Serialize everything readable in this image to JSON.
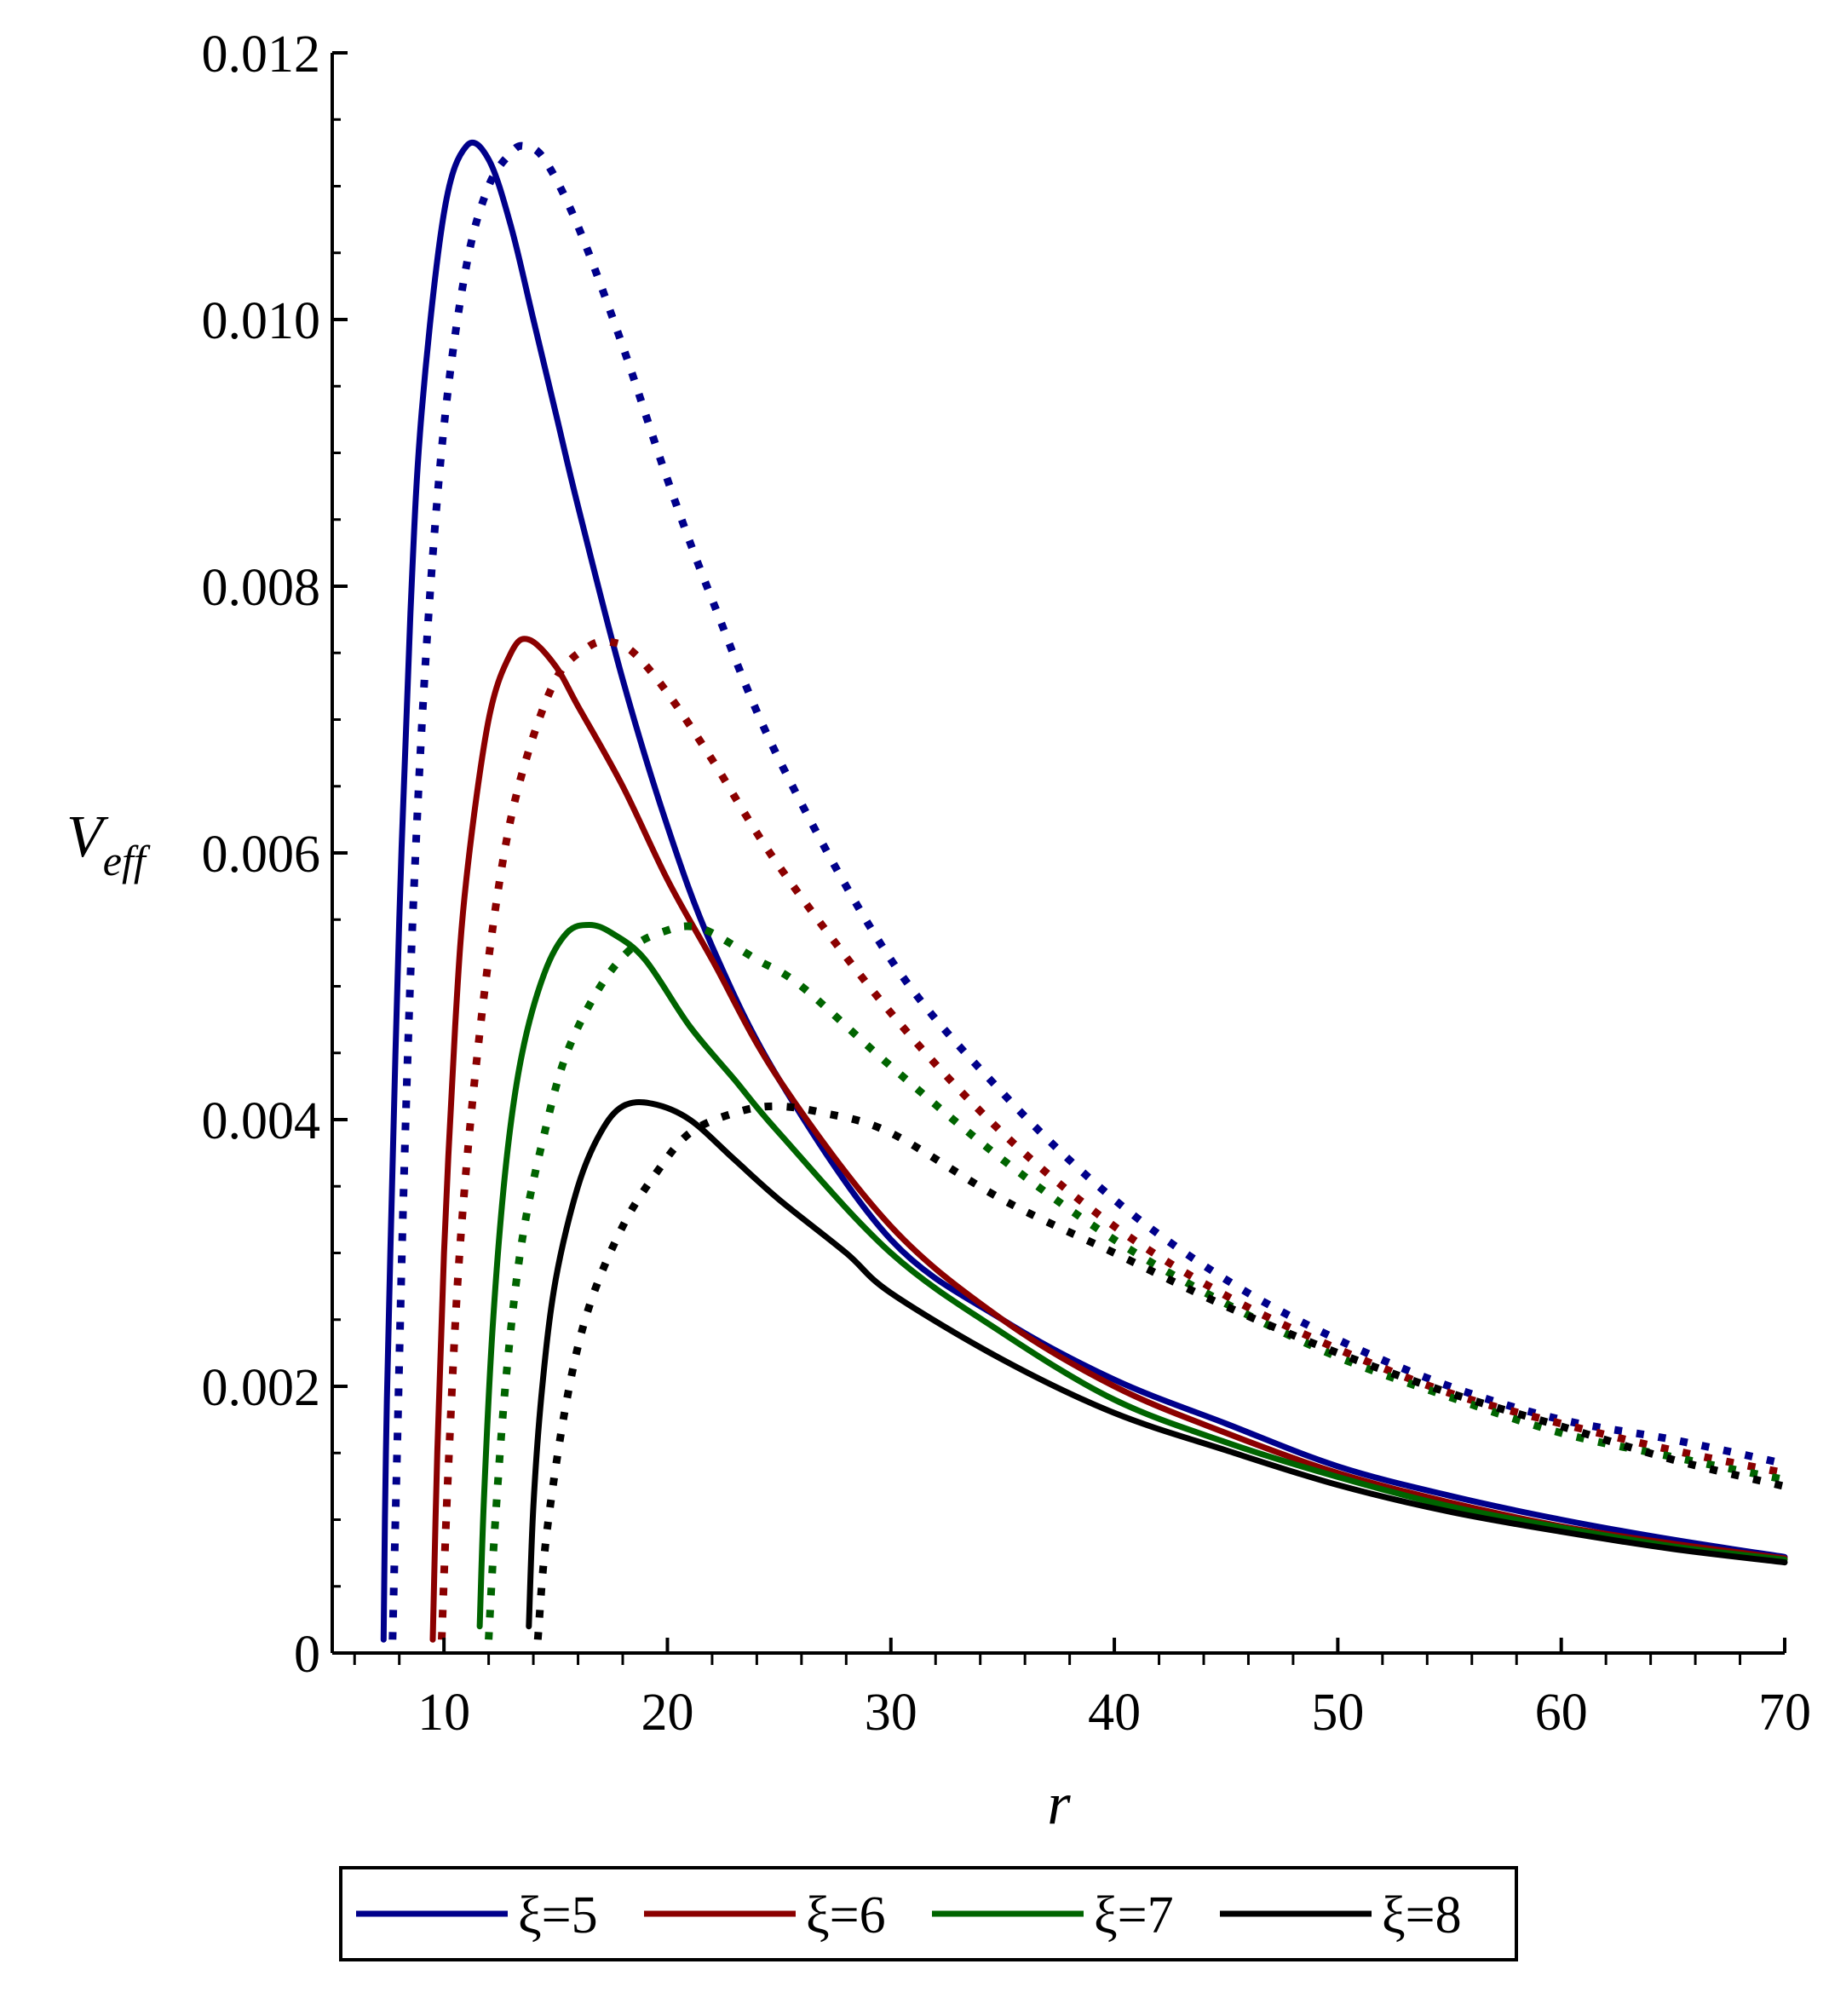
{
  "chart_data": {
    "type": "line",
    "title": "",
    "xlabel": "r",
    "ylabel": "V",
    "ylabel_subscript": "eff",
    "xlim": [
      5,
      70
    ],
    "ylim": [
      0,
      0.012
    ],
    "x_ticks": [
      10,
      20,
      30,
      40,
      50,
      60,
      70
    ],
    "x_tick_labels": [
      "10",
      "20",
      "30",
      "40",
      "50",
      "60",
      "70"
    ],
    "y_ticks": [
      0,
      0.002,
      0.004,
      0.006,
      0.008,
      0.01,
      0.012
    ],
    "y_tick_labels": [
      "0",
      "0.002",
      "0.004",
      "0.006",
      "0.008",
      "0.010",
      "0.012"
    ],
    "grid": false,
    "legend_position": "bottom",
    "series": [
      {
        "name": "ξ=5",
        "color": "#00008b",
        "style": "solid",
        "x": [
          7.3,
          7.4,
          7.6,
          8.0,
          8.5,
          9.0,
          10.0,
          11.0,
          12.0,
          13.0,
          14.0,
          15.0,
          16.0,
          18.0,
          20.0,
          22.0,
          25.0,
          30.0,
          35.0,
          40.0,
          45.0,
          50.0,
          55.0,
          60.0,
          65.0,
          70.0
        ],
        "values": [
          0.0001,
          0.0015,
          0.003,
          0.0055,
          0.0078,
          0.0093,
          0.0108,
          0.0113,
          0.0112,
          0.0107,
          0.01,
          0.0093,
          0.0086,
          0.0073,
          0.0062,
          0.0053,
          0.0043,
          0.0031,
          0.0025,
          0.00205,
          0.00172,
          0.0014,
          0.00118,
          0.001,
          0.00085,
          0.00072
        ]
      },
      {
        "name": "ξ=5 (dotted)",
        "color": "#00008b",
        "style": "dotted",
        "x": [
          7.7,
          7.9,
          8.2,
          8.6,
          9.2,
          10.0,
          11.0,
          12.0,
          13.0,
          13.6,
          14.5,
          16.0,
          18.0,
          20.0,
          22.0,
          25.0,
          30.0,
          35.0,
          40.0,
          45.0,
          50.0,
          55.0,
          60.0,
          65.0,
          70.0
        ],
        "values": [
          0.0001,
          0.0015,
          0.0035,
          0.0055,
          0.0075,
          0.0092,
          0.0104,
          0.011,
          0.01125,
          0.0113,
          0.0112,
          0.0107,
          0.0098,
          0.0088,
          0.0079,
          0.0067,
          0.0052,
          0.0042,
          0.0034,
          0.0028,
          0.00235,
          0.002,
          0.00175,
          0.0016,
          0.00142
        ]
      },
      {
        "name": "ξ=6",
        "color": "#8b0000",
        "style": "solid",
        "x": [
          9.5,
          9.7,
          10.0,
          10.5,
          11.0,
          12.0,
          13.0,
          13.8,
          15.0,
          16.0,
          18.0,
          20.0,
          22.0,
          25.0,
          30.0,
          35.0,
          40.0,
          45.0,
          50.0,
          55.0,
          60.0,
          65.0,
          70.0
        ],
        "values": [
          0.0001,
          0.0015,
          0.003,
          0.0047,
          0.0058,
          0.007,
          0.0075,
          0.0076,
          0.0074,
          0.0071,
          0.0065,
          0.0058,
          0.0052,
          0.0043,
          0.0032,
          0.0025,
          0.002,
          0.00165,
          0.00135,
          0.00113,
          0.00095,
          0.00082,
          0.00071
        ]
      },
      {
        "name": "ξ=6 (dotted)",
        "color": "#8b0000",
        "style": "dotted",
        "x": [
          9.9,
          10.2,
          10.7,
          11.5,
          12.5,
          13.5,
          15.0,
          16.5,
          17.5,
          18.5,
          20.0,
          22.0,
          25.0,
          30.0,
          35.0,
          40.0,
          45.0,
          50.0,
          55.0,
          60.0,
          65.0,
          70.0
        ],
        "values": [
          0.0001,
          0.0014,
          0.003,
          0.0045,
          0.0058,
          0.0066,
          0.0073,
          0.00755,
          0.00758,
          0.0075,
          0.0072,
          0.0067,
          0.0059,
          0.0048,
          0.0039,
          0.0032,
          0.00268,
          0.00228,
          0.00195,
          0.00172,
          0.00152,
          0.00135
        ]
      },
      {
        "name": "ξ=7",
        "color": "#006400",
        "style": "solid",
        "x": [
          11.6,
          11.8,
          12.2,
          12.8,
          13.5,
          14.5,
          15.5,
          16.5,
          17.5,
          19.0,
          21.0,
          23.0,
          25.0,
          30.0,
          35.0,
          40.0,
          45.0,
          50.0,
          55.0,
          60.0,
          65.0,
          70.0
        ],
        "values": [
          0.0002,
          0.0012,
          0.0025,
          0.0037,
          0.0045,
          0.0051,
          0.0054,
          0.00546,
          0.0054,
          0.0052,
          0.0047,
          0.0043,
          0.0039,
          0.003,
          0.0024,
          0.0019,
          0.00158,
          0.00132,
          0.0011,
          0.00094,
          0.0008,
          0.0007
        ]
      },
      {
        "name": "ξ=7 (dotted)",
        "color": "#006400",
        "style": "dotted",
        "x": [
          12.0,
          12.3,
          12.8,
          13.5,
          14.5,
          15.5,
          17.0,
          18.5,
          20.0,
          21.0,
          22.0,
          24.0,
          26.0,
          30.0,
          35.0,
          40.0,
          45.0,
          50.0,
          55.0,
          60.0,
          65.0,
          70.0
        ],
        "values": [
          0.0001,
          0.001,
          0.0021,
          0.0031,
          0.0039,
          0.0045,
          0.005,
          0.0053,
          0.00542,
          0.00545,
          0.0054,
          0.0052,
          0.005,
          0.0044,
          0.0037,
          0.0031,
          0.00262,
          0.00222,
          0.00192,
          0.00165,
          0.00147,
          0.0013
        ]
      },
      {
        "name": "ξ=8",
        "color": "#000000",
        "style": "solid",
        "x": [
          13.8,
          14.0,
          14.4,
          15.0,
          16.0,
          17.0,
          18.0,
          19.3,
          21.0,
          23.0,
          25.0,
          28.0,
          30.0,
          35.0,
          40.0,
          45.0,
          50.0,
          55.0,
          60.0,
          65.0,
          70.0
        ],
        "values": [
          0.0002,
          0.0011,
          0.002,
          0.0028,
          0.0035,
          0.0039,
          0.0041,
          0.00412,
          0.004,
          0.0037,
          0.0034,
          0.003,
          0.0027,
          0.0022,
          0.0018,
          0.00152,
          0.00126,
          0.00106,
          0.00091,
          0.00078,
          0.00068
        ]
      },
      {
        "name": "ξ=8 (dotted)",
        "color": "#000000",
        "style": "dotted",
        "x": [
          14.2,
          14.6,
          15.5,
          16.5,
          18.0,
          19.5,
          21.0,
          23.0,
          24.8,
          27.0,
          30.0,
          35.0,
          40.0,
          45.0,
          50.0,
          55.0,
          60.0,
          65.0,
          70.0
        ],
        "values": [
          0.0001,
          0.0009,
          0.0019,
          0.0026,
          0.0032,
          0.0036,
          0.0039,
          0.00405,
          0.0041,
          0.00405,
          0.0039,
          0.0034,
          0.003,
          0.0026,
          0.00225,
          0.00195,
          0.0017,
          0.00145,
          0.00125
        ]
      }
    ]
  },
  "legend": {
    "items": [
      {
        "label": "ξ=5",
        "color": "#00008b"
      },
      {
        "label": "ξ=6",
        "color": "#8b0000"
      },
      {
        "label": "ξ=7",
        "color": "#006400"
      },
      {
        "label": "ξ=8",
        "color": "#000000"
      }
    ]
  }
}
